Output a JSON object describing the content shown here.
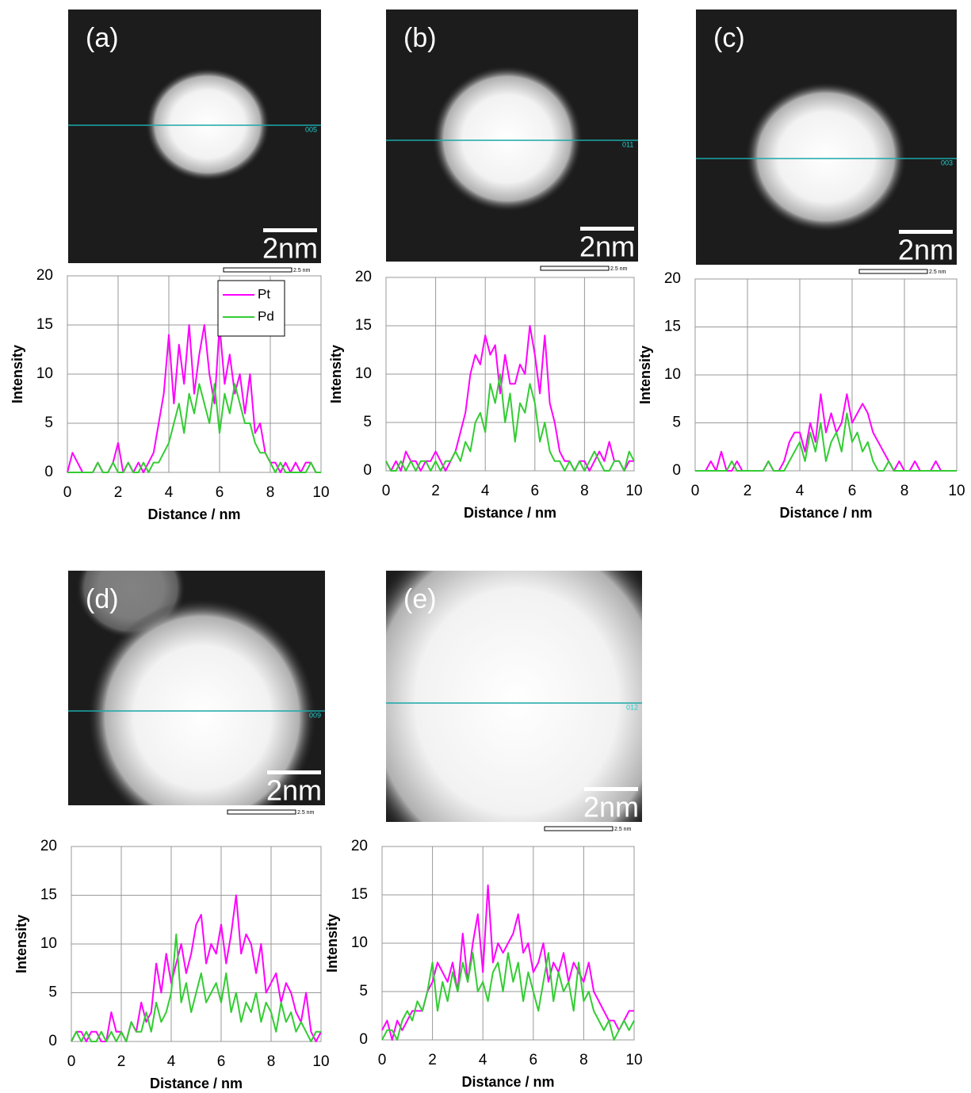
{
  "images": [
    {
      "label": "(a)",
      "scale_bar": "2nm",
      "line_label": "005",
      "small_scale": "2.5 nm"
    },
    {
      "label": "(b)",
      "scale_bar": "2nm",
      "line_label": "011",
      "small_scale": "2.5 nm"
    },
    {
      "label": "(c)",
      "scale_bar": "2nm",
      "line_label": "003",
      "small_scale": "2.5 nm"
    },
    {
      "label": "(d)",
      "scale_bar": "2nm",
      "line_label": "009",
      "small_scale": "2.5 nm"
    },
    {
      "label": "(e)",
      "scale_bar": "2nm",
      "line_label": "012",
      "small_scale": "2.5 nm"
    }
  ],
  "chart_data": [
    {
      "type": "line",
      "xlabel": "Distance / nm",
      "ylabel": "Intensity",
      "xlim": [
        0,
        10
      ],
      "ylim": [
        0,
        20
      ],
      "xticks": [
        0,
        2,
        4,
        6,
        8,
        10
      ],
      "yticks": [
        0,
        5,
        10,
        15,
        20
      ],
      "grid": true,
      "legend": "upper center",
      "x": [
        0,
        0.2,
        0.4,
        0.6,
        0.8,
        1,
        1.2,
        1.4,
        1.6,
        1.8,
        2,
        2.2,
        2.4,
        2.6,
        2.8,
        3,
        3.2,
        3.4,
        3.6,
        3.8,
        4,
        4.2,
        4.4,
        4.6,
        4.8,
        5,
        5.2,
        5.4,
        5.6,
        5.8,
        6,
        6.2,
        6.4,
        6.6,
        6.8,
        7,
        7.2,
        7.4,
        7.6,
        7.8,
        8,
        8.2,
        8.4,
        8.6,
        8.8,
        9,
        9.2,
        9.4,
        9.6,
        9.8,
        10
      ],
      "series": [
        {
          "name": "Pt",
          "color": "#ff00ff",
          "values": [
            0,
            2,
            1,
            0,
            0,
            0,
            1,
            0,
            0,
            1,
            3,
            0,
            1,
            0,
            1,
            0,
            1,
            2,
            5,
            8,
            14,
            7,
            13,
            9,
            15,
            8,
            12,
            15,
            10,
            7,
            15,
            9,
            12,
            8,
            10,
            6,
            10,
            4,
            5,
            2,
            1,
            1,
            0,
            1,
            0,
            1,
            0,
            1,
            1,
            0,
            0
          ]
        },
        {
          "name": "Pd",
          "color": "#33cc33",
          "values": [
            0,
            0,
            0,
            0,
            0,
            0,
            1,
            0,
            0,
            1,
            0,
            0,
            1,
            0,
            0,
            1,
            0,
            1,
            1,
            2,
            3,
            5,
            7,
            4,
            8,
            6,
            9,
            7,
            5,
            9,
            4,
            8,
            6,
            9,
            7,
            5,
            5,
            3,
            2,
            2,
            1,
            0,
            1,
            0,
            0,
            0,
            0,
            0,
            1,
            0,
            0
          ]
        }
      ]
    },
    {
      "type": "line",
      "xlabel": "Distance / nm",
      "ylabel": "Intensity",
      "xlim": [
        0,
        10
      ],
      "ylim": [
        0,
        20
      ],
      "xticks": [
        0,
        2,
        4,
        6,
        8,
        10
      ],
      "yticks": [
        0,
        5,
        10,
        15,
        20
      ],
      "grid": true,
      "x": [
        0,
        0.2,
        0.4,
        0.6,
        0.8,
        1,
        1.2,
        1.4,
        1.6,
        1.8,
        2,
        2.2,
        2.4,
        2.6,
        2.8,
        3,
        3.2,
        3.4,
        3.6,
        3.8,
        4,
        4.2,
        4.4,
        4.6,
        4.8,
        5,
        5.2,
        5.4,
        5.6,
        5.8,
        6,
        6.2,
        6.4,
        6.6,
        6.8,
        7,
        7.2,
        7.4,
        7.6,
        7.8,
        8,
        8.2,
        8.4,
        8.6,
        8.8,
        9,
        9.2,
        9.4,
        9.6,
        9.8,
        10
      ],
      "series": [
        {
          "color": "#ff00ff",
          "values": [
            1,
            0,
            1,
            0,
            2,
            1,
            1,
            0,
            1,
            1,
            2,
            1,
            0,
            1,
            2,
            4,
            6,
            10,
            12,
            11,
            14,
            12,
            13,
            8,
            12,
            9,
            9,
            11,
            10,
            15,
            12,
            8,
            14,
            7,
            5,
            2,
            1,
            1,
            0,
            1,
            1,
            0,
            1,
            2,
            1,
            3,
            1,
            1,
            0,
            1,
            1
          ]
        },
        {
          "color": "#33cc33",
          "values": [
            1,
            0,
            0,
            1,
            0,
            1,
            0,
            1,
            1,
            0,
            1,
            0,
            1,
            1,
            2,
            1,
            3,
            2,
            5,
            6,
            4,
            9,
            7,
            10,
            5,
            8,
            3,
            7,
            6,
            9,
            7,
            3,
            5,
            2,
            1,
            1,
            0,
            1,
            0,
            1,
            0,
            1,
            2,
            1,
            0,
            0,
            1,
            1,
            0,
            2,
            1
          ]
        }
      ]
    },
    {
      "type": "line",
      "xlabel": "Distance / nm",
      "ylabel": "Intensity",
      "xlim": [
        0,
        10
      ],
      "ylim": [
        0,
        20
      ],
      "xticks": [
        0,
        2,
        4,
        6,
        8,
        10
      ],
      "yticks": [
        0,
        5,
        10,
        15,
        20
      ],
      "grid": true,
      "x": [
        0,
        0.2,
        0.4,
        0.6,
        0.8,
        1,
        1.2,
        1.4,
        1.6,
        1.8,
        2,
        2.2,
        2.4,
        2.6,
        2.8,
        3,
        3.2,
        3.4,
        3.6,
        3.8,
        4,
        4.2,
        4.4,
        4.6,
        4.8,
        5,
        5.2,
        5.4,
        5.6,
        5.8,
        6,
        6.2,
        6.4,
        6.6,
        6.8,
        7,
        7.2,
        7.4,
        7.6,
        7.8,
        8,
        8.2,
        8.4,
        8.6,
        8.8,
        9,
        9.2,
        9.4,
        9.6,
        9.8,
        10
      ],
      "series": [
        {
          "color": "#ff00ff",
          "values": [
            0,
            0,
            0,
            1,
            0,
            2,
            0,
            0,
            1,
            0,
            0,
            0,
            0,
            0,
            1,
            0,
            0,
            1,
            3,
            4,
            4,
            2,
            5,
            3,
            8,
            4,
            6,
            4,
            5,
            8,
            5,
            6,
            7,
            6,
            4,
            3,
            2,
            1,
            0,
            1,
            0,
            0,
            1,
            0,
            0,
            0,
            1,
            0,
            0,
            0,
            0
          ]
        },
        {
          "color": "#33cc33",
          "values": [
            0,
            0,
            0,
            0,
            0,
            0,
            0,
            1,
            0,
            0,
            0,
            0,
            0,
            0,
            1,
            0,
            0,
            0,
            1,
            2,
            3,
            1,
            4,
            2,
            5,
            1,
            3,
            4,
            2,
            6,
            3,
            4,
            2,
            3,
            1,
            0,
            0,
            1,
            0,
            0,
            0,
            0,
            0,
            0,
            0,
            0,
            0,
            0,
            0,
            0,
            0
          ]
        }
      ]
    },
    {
      "type": "line",
      "xlabel": "Distance / nm",
      "ylabel": "Intensity",
      "xlim": [
        0,
        10
      ],
      "ylim": [
        0,
        20
      ],
      "xticks": [
        0,
        2,
        4,
        6,
        8,
        10
      ],
      "yticks": [
        0,
        5,
        10,
        15,
        20
      ],
      "grid": true,
      "x": [
        0,
        0.2,
        0.4,
        0.6,
        0.8,
        1,
        1.2,
        1.4,
        1.6,
        1.8,
        2,
        2.2,
        2.4,
        2.6,
        2.8,
        3,
        3.2,
        3.4,
        3.6,
        3.8,
        4,
        4.2,
        4.4,
        4.6,
        4.8,
        5,
        5.2,
        5.4,
        5.6,
        5.8,
        6,
        6.2,
        6.4,
        6.6,
        6.8,
        7,
        7.2,
        7.4,
        7.6,
        7.8,
        8,
        8.2,
        8.4,
        8.6,
        8.8,
        9,
        9.2,
        9.4,
        9.6,
        9.8,
        10
      ],
      "series": [
        {
          "color": "#ff00ff",
          "values": [
            0,
            1,
            1,
            0,
            1,
            1,
            0,
            0,
            3,
            1,
            1,
            0,
            2,
            1,
            4,
            2,
            3,
            8,
            5,
            9,
            6,
            8,
            10,
            7,
            9,
            12,
            13,
            8,
            10,
            9,
            12,
            8,
            11,
            15,
            9,
            11,
            10,
            7,
            10,
            5,
            6,
            7,
            4,
            6,
            5,
            3,
            2,
            5,
            1,
            0,
            1
          ]
        },
        {
          "color": "#33cc33",
          "values": [
            0,
            1,
            0,
            1,
            0,
            0,
            1,
            0,
            1,
            0,
            1,
            0,
            2,
            1,
            1,
            3,
            1,
            4,
            2,
            3,
            5,
            11,
            4,
            6,
            3,
            5,
            7,
            4,
            5,
            6,
            4,
            7,
            3,
            5,
            2,
            4,
            3,
            5,
            2,
            4,
            3,
            1,
            4,
            2,
            3,
            1,
            2,
            1,
            0,
            1,
            1
          ]
        }
      ]
    },
    {
      "type": "line",
      "xlabel": "Distance / nm",
      "ylabel": "Intensity",
      "xlim": [
        0,
        10
      ],
      "ylim": [
        0,
        20
      ],
      "xticks": [
        0,
        2,
        4,
        6,
        8,
        10
      ],
      "yticks": [
        0,
        5,
        10,
        15,
        20
      ],
      "grid": true,
      "x": [
        0,
        0.2,
        0.4,
        0.6,
        0.8,
        1,
        1.2,
        1.4,
        1.6,
        1.8,
        2,
        2.2,
        2.4,
        2.6,
        2.8,
        3,
        3.2,
        3.4,
        3.6,
        3.8,
        4,
        4.2,
        4.4,
        4.6,
        4.8,
        5,
        5.2,
        5.4,
        5.6,
        5.8,
        6,
        6.2,
        6.4,
        6.6,
        6.8,
        7,
        7.2,
        7.4,
        7.6,
        7.8,
        8,
        8.2,
        8.4,
        8.6,
        8.8,
        9,
        9.2,
        9.4,
        9.6,
        9.8,
        10
      ],
      "series": [
        {
          "color": "#ff00ff",
          "values": [
            1,
            2,
            0,
            2,
            1,
            2,
            3,
            3,
            3,
            5,
            6,
            8,
            7,
            6,
            8,
            5,
            11,
            6,
            10,
            13,
            7,
            16,
            8,
            10,
            9,
            10,
            11,
            13,
            9,
            10,
            7,
            8,
            10,
            6,
            8,
            7,
            9,
            6,
            8,
            7,
            6,
            8,
            5,
            4,
            3,
            2,
            2,
            1,
            2,
            3,
            3
          ]
        },
        {
          "color": "#33cc33",
          "values": [
            0,
            1,
            1,
            0,
            2,
            3,
            2,
            4,
            3,
            5,
            8,
            3,
            6,
            4,
            7,
            5,
            8,
            6,
            9,
            5,
            6,
            4,
            7,
            8,
            5,
            9,
            6,
            8,
            4,
            7,
            5,
            3,
            6,
            9,
            4,
            7,
            5,
            6,
            3,
            8,
            4,
            5,
            3,
            2,
            1,
            2,
            0,
            1,
            2,
            1,
            2
          ]
        }
      ]
    }
  ]
}
